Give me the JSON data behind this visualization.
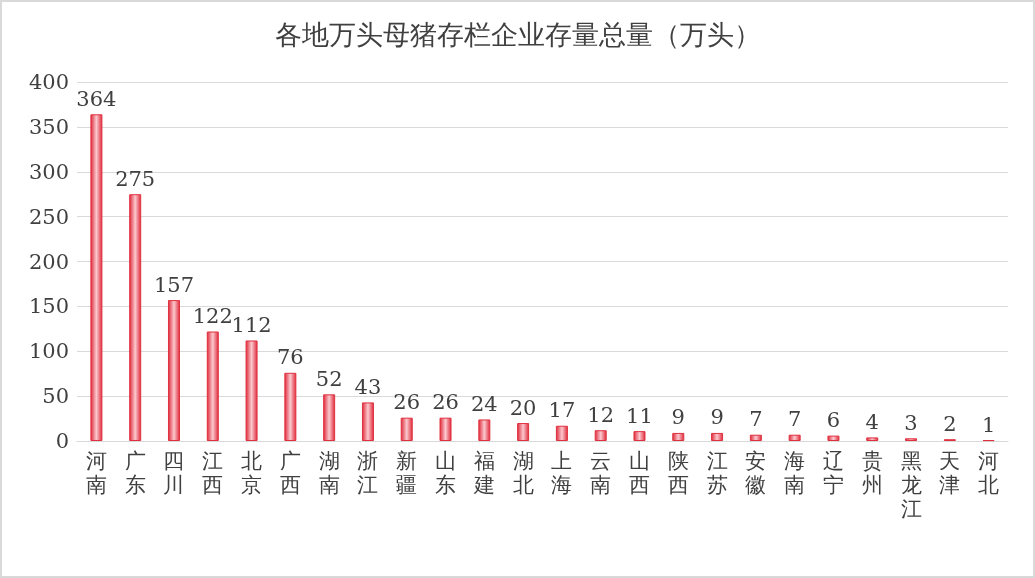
{
  "chart_data": {
    "type": "bar",
    "title": "各地万头母猪存栏企业存量总量（万头）",
    "categories": [
      "河南",
      "广东",
      "四川",
      "江西",
      "北京",
      "广西",
      "湖南",
      "浙江",
      "新疆",
      "山东",
      "福建",
      "湖北",
      "上海",
      "云南",
      "山西",
      "陕西",
      "江苏",
      "安徽",
      "海南",
      "辽宁",
      "贵州",
      "黑龙江",
      "天津",
      "河北"
    ],
    "values": [
      364,
      275,
      157,
      122,
      112,
      76,
      52,
      43,
      26,
      26,
      24,
      20,
      17,
      12,
      11,
      9,
      9,
      7,
      7,
      6,
      4,
      3,
      2,
      1
    ],
    "color": "#e0303f",
    "ylim": [
      0,
      400
    ],
    "yticks": [
      0,
      50,
      100,
      150,
      200,
      250,
      300,
      350,
      400
    ],
    "grid": "y",
    "data_labels": true
  }
}
